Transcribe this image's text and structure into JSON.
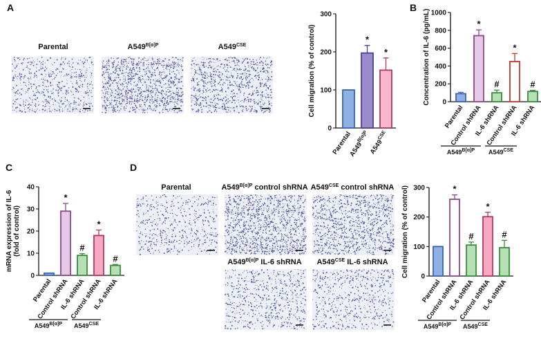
{
  "panels": {
    "A": {
      "label": "A",
      "images": [
        {
          "title": "Parental",
          "sup": "",
          "seed": 11,
          "density": 700
        },
        {
          "title": "A549",
          "sup": "B[α]P",
          "seed": 23,
          "density": 1300
        },
        {
          "title": "A549",
          "sup": "CSE",
          "seed": 37,
          "density": 1000
        }
      ]
    },
    "B": {
      "label": "B"
    },
    "C": {
      "label": "C"
    },
    "D": {
      "label": "D",
      "images": [
        {
          "title": "Parental",
          "sup": "",
          "suffix": "",
          "seed": 41,
          "density": 600
        },
        {
          "title": "A549",
          "sup": "B[α]P",
          "suffix": " control shRNA",
          "seed": 53,
          "density": 1400
        },
        {
          "title": "A549",
          "sup": "CSE",
          "suffix": " control shRNA",
          "seed": 67,
          "density": 1200
        },
        {
          "title": "A549",
          "sup": "B[α]P",
          "suffix": " IL-6 shRNA",
          "seed": 79,
          "density": 700
        },
        {
          "title": "A549",
          "sup": "CSE",
          "suffix": " IL-6 shRNA",
          "seed": 83,
          "density": 650
        }
      ]
    }
  },
  "chart_data": [
    {
      "id": "A",
      "type": "bar",
      "ylabel": "Cell migration (% of control)",
      "ylim": [
        0,
        300
      ],
      "yticks": [
        0,
        100,
        200,
        300
      ],
      "categories": [
        {
          "text": "Parental",
          "sup": ""
        },
        {
          "text": "A549",
          "sup": "B[α]P"
        },
        {
          "text": "A549",
          "sup": "CSE"
        }
      ],
      "values": [
        100,
        197,
        152
      ],
      "errors": [
        0,
        20,
        32
      ],
      "marks": [
        "",
        "*",
        "*"
      ],
      "fill": [
        "#8fb0e3",
        "#9b8bc8",
        "#f7b8cf"
      ],
      "stroke": [
        "#3d62b0",
        "#4f3f8f",
        "#b03a5b"
      ]
    },
    {
      "id": "B",
      "type": "bar",
      "ylabel": "Concentration of IL-6 (pg/mL)",
      "ylim": [
        0,
        1000
      ],
      "yticks": [
        0,
        200,
        400,
        600,
        800,
        1000
      ],
      "categories": [
        {
          "text": "Parental",
          "sup": ""
        },
        {
          "text": "Control shRNA",
          "sup": ""
        },
        {
          "text": "IL-6 shRNA",
          "sup": ""
        },
        {
          "text": "Control shRNA",
          "sup": ""
        },
        {
          "text": "IL-6 shRNA",
          "sup": ""
        }
      ],
      "values": [
        90,
        740,
        100,
        450,
        115
      ],
      "errors": [
        15,
        65,
        30,
        90,
        12
      ],
      "marks": [
        "",
        "*",
        "#",
        "*",
        "#"
      ],
      "fill": [
        "#8fb0e3",
        "#e6c9e6",
        "#b5e0b5",
        "#ffffff",
        "#b5e0b5"
      ],
      "stroke": [
        "#3d62b0",
        "#8a4a8a",
        "#3a8a3a",
        "#c0392b",
        "#3a8a3a"
      ],
      "groups": [
        {
          "text": "A549",
          "sup": "B[α]P"
        },
        {
          "text": "A549",
          "sup": "CSE"
        }
      ]
    },
    {
      "id": "C",
      "type": "bar",
      "ylabel": "mRNA expression of IL-6",
      "ylabel2": "(fold of control)",
      "ylim": [
        0,
        40
      ],
      "yticks": [
        0,
        10,
        20,
        30,
        40
      ],
      "categories": [
        {
          "text": "Parental",
          "sup": ""
        },
        {
          "text": "Control shRNA",
          "sup": ""
        },
        {
          "text": "IL-6 shRNA",
          "sup": ""
        },
        {
          "text": "Control shRNA",
          "sup": ""
        },
        {
          "text": "IL-6 shRNA",
          "sup": ""
        }
      ],
      "values": [
        1,
        29,
        9,
        18,
        4.5
      ],
      "errors": [
        0,
        3.5,
        0.8,
        2.5,
        0.4
      ],
      "marks": [
        "",
        "*",
        "#",
        "*",
        "#"
      ],
      "fill": [
        "#8fb0e3",
        "#e6c9e6",
        "#b5e0b5",
        "#f7a8c3",
        "#b5e0b5"
      ],
      "stroke": [
        "#3d62b0",
        "#8a4a8a",
        "#3a8a3a",
        "#b03a5b",
        "#3a8a3a"
      ],
      "groups": [
        {
          "text": "A549",
          "sup": "B[α]P"
        },
        {
          "text": "A549",
          "sup": "CSE"
        }
      ]
    },
    {
      "id": "D",
      "type": "bar",
      "ylabel": "Cell migration (% of control)",
      "ylim": [
        0,
        300
      ],
      "yticks": [
        0,
        100,
        200,
        300
      ],
      "categories": [
        {
          "text": "Parental",
          "sup": ""
        },
        {
          "text": "Control shRNA",
          "sup": ""
        },
        {
          "text": "IL-6 shRNA",
          "sup": ""
        },
        {
          "text": "Control shRNA",
          "sup": ""
        },
        {
          "text": "IL-6 shRNA",
          "sup": ""
        }
      ],
      "values": [
        100,
        260,
        105,
        201,
        96
      ],
      "errors": [
        0,
        15,
        10,
        15,
        25
      ],
      "marks": [
        "",
        "*",
        "#",
        "*",
        "#"
      ],
      "fill": [
        "#8fb0e3",
        "#ffffff",
        "#b5e0b5",
        "#f7a8c3",
        "#b5e0b5"
      ],
      "stroke": [
        "#3d62b0",
        "#8a4a8a",
        "#3a8a3a",
        "#b03a5b",
        "#3a8a3a"
      ],
      "groups": [
        {
          "text": "A549",
          "sup": "B[α]P"
        },
        {
          "text": "A549",
          "sup": "CSE"
        }
      ]
    }
  ]
}
